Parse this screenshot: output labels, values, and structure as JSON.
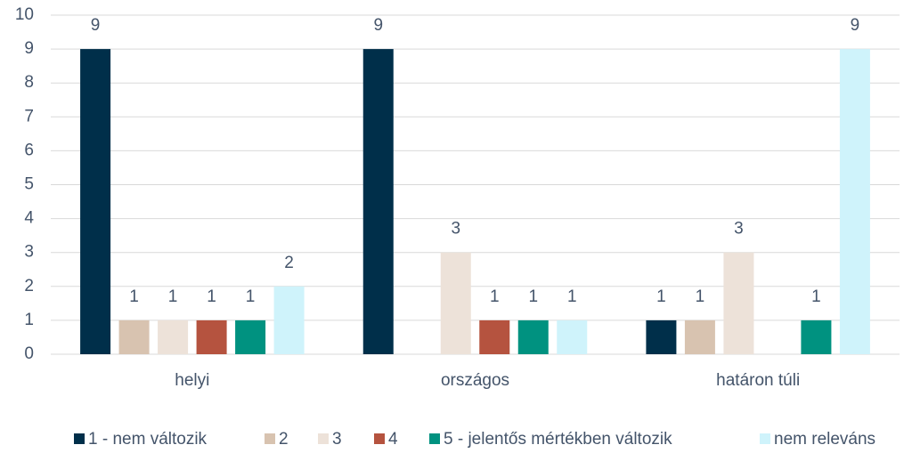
{
  "chart_data": {
    "type": "bar",
    "categories": [
      "helyi",
      "országos",
      "határon túli"
    ],
    "series": [
      {
        "name": "1 - nem változik",
        "color": "#002f4a",
        "values": [
          9,
          9,
          1
        ]
      },
      {
        "name": "2",
        "color": "#d8c3b0",
        "values": [
          1,
          null,
          1
        ]
      },
      {
        "name": "3",
        "color": "#ede2d9",
        "values": [
          1,
          3,
          3
        ]
      },
      {
        "name": "4",
        "color": "#b5533f",
        "values": [
          1,
          1,
          null
        ]
      },
      {
        "name": "5 - jelentős mértékben változik",
        "color": "#009280",
        "values": [
          1,
          1,
          1
        ]
      },
      {
        "name": "nem releváns",
        "color": "#cff3fb",
        "values": [
          2,
          1,
          9
        ]
      }
    ],
    "ylim": [
      0,
      10
    ],
    "yticks": [
      0,
      1,
      2,
      3,
      4,
      5,
      6,
      7,
      8,
      9,
      10
    ],
    "grid": true,
    "legend": "bottom"
  }
}
